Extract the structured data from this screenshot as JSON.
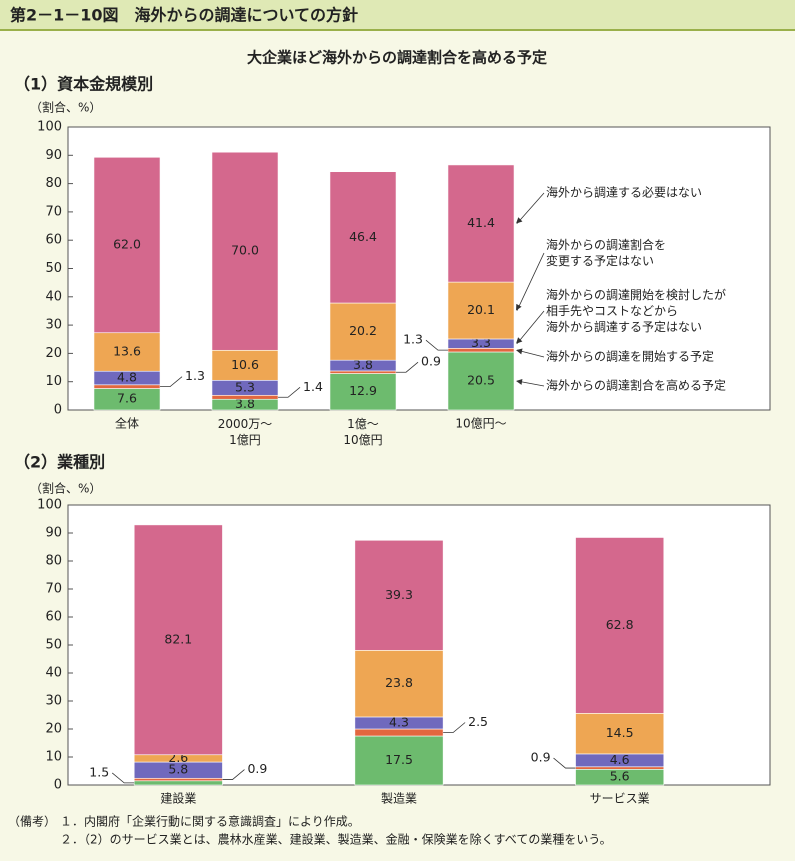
{
  "header": {
    "title": "第2－1－10図　海外からの調達についての方針",
    "subtitle": "大企業ほど海外からの調達割合を高める予定"
  },
  "chart_data": [
    {
      "type": "bar",
      "stacked": true,
      "title": "（1）資本金規模別",
      "y_label": "（割合、%）",
      "categories": [
        "全体",
        "2000万～\n1億円",
        "1億～\n10億円",
        "10億円～"
      ],
      "ylim": [
        0,
        100
      ],
      "yticks": [
        0,
        10,
        20,
        30,
        40,
        50,
        60,
        70,
        80,
        90,
        100
      ],
      "legend": "right",
      "series": [
        {
          "name": "海外からの調達割合を高める予定",
          "color": "#6dbb6e",
          "values": [
            7.6,
            3.8,
            12.9,
            20.5
          ],
          "value_labels": [
            "7.6",
            "3.8",
            "12.9",
            "20.5"
          ]
        },
        {
          "name": "海外からの調達を開始する予定",
          "color": "#e2673f",
          "values": [
            1.3,
            1.4,
            0.9,
            1.3
          ],
          "value_labels": [
            "1.3",
            "1.4",
            "0.9",
            "1.3"
          ]
        },
        {
          "name": "海外からの調達開始を検討したが\n相手先やコストなどから\n海外から調達する予定はない",
          "color": "#7069bd",
          "values": [
            4.8,
            5.3,
            3.8,
            3.3
          ],
          "value_labels": [
            "4.8",
            "5.3",
            "3.8",
            "3.3"
          ]
        },
        {
          "name": "海外からの調達割合を\n変更する予定はない",
          "color": "#eea653",
          "values": [
            13.6,
            10.6,
            20.2,
            20.1
          ],
          "value_labels": [
            "13.6",
            "10.6",
            "20.2",
            "20.1"
          ]
        },
        {
          "name": "海外から調達する必要はない",
          "color": "#d4688d",
          "values": [
            62.0,
            70.0,
            46.4,
            41.4
          ],
          "value_labels": [
            "62.0",
            "70.0",
            "46.4",
            "41.4"
          ]
        }
      ]
    },
    {
      "type": "bar",
      "stacked": true,
      "title": "（2）業種別",
      "y_label": "（割合、%）",
      "categories": [
        "建設業",
        "製造業",
        "サービス業"
      ],
      "ylim": [
        0,
        100
      ],
      "yticks": [
        0,
        10,
        20,
        30,
        40,
        50,
        60,
        70,
        80,
        90,
        100
      ],
      "series": [
        {
          "color": "#6dbb6e",
          "values": [
            1.5,
            17.5,
            5.6
          ],
          "value_labels": [
            "1.5",
            "17.5",
            "5.6"
          ]
        },
        {
          "color": "#e2673f",
          "values": [
            0.9,
            2.5,
            0.9
          ],
          "value_labels": [
            "0.9",
            "2.5",
            "0.9"
          ]
        },
        {
          "color": "#7069bd",
          "values": [
            5.8,
            4.3,
            4.6
          ],
          "value_labels": [
            "5.8",
            "4.3",
            "4.6"
          ]
        },
        {
          "color": "#eea653",
          "values": [
            2.6,
            23.8,
            14.5
          ],
          "value_labels": [
            "2.6",
            "23.8",
            "14.5"
          ]
        },
        {
          "color": "#d4688d",
          "values": [
            82.1,
            39.3,
            62.8
          ],
          "value_labels": [
            "82.1",
            "39.3",
            "62.8"
          ]
        }
      ]
    }
  ],
  "notes": {
    "label": "（備考）",
    "items": [
      "１．内閣府「企業行動に関する意識調査」により作成。",
      "２．（2）のサービス業とは、農林水産業、建設業、製造業、金融・保険業を除くすべての業種をいう。"
    ]
  }
}
